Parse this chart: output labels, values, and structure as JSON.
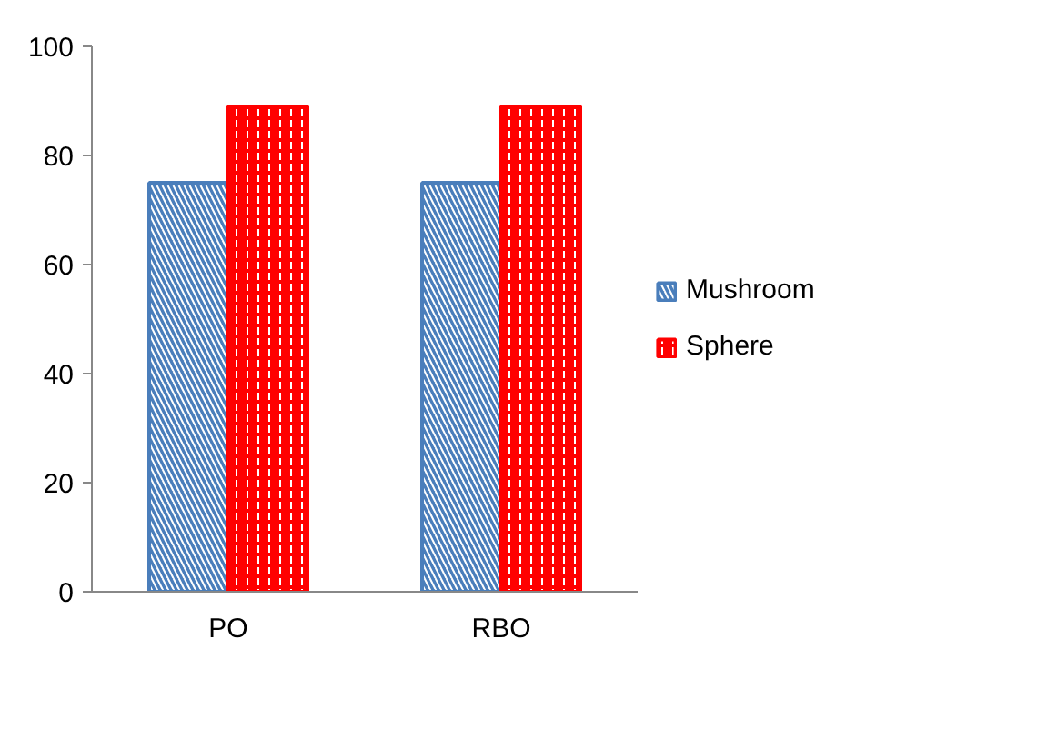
{
  "chart_data": {
    "type": "bar",
    "categories": [
      "PO",
      "RBO"
    ],
    "series": [
      {
        "name": "Mushroom",
        "color": "#4a7ebb",
        "values": [
          75,
          75
        ]
      },
      {
        "name": "Sphere",
        "color": "#ff0000",
        "values": [
          89,
          89
        ]
      }
    ],
    "ylim": [
      0,
      100
    ],
    "yticks": [
      0,
      20,
      40,
      60,
      80,
      100
    ],
    "legend": "right"
  }
}
